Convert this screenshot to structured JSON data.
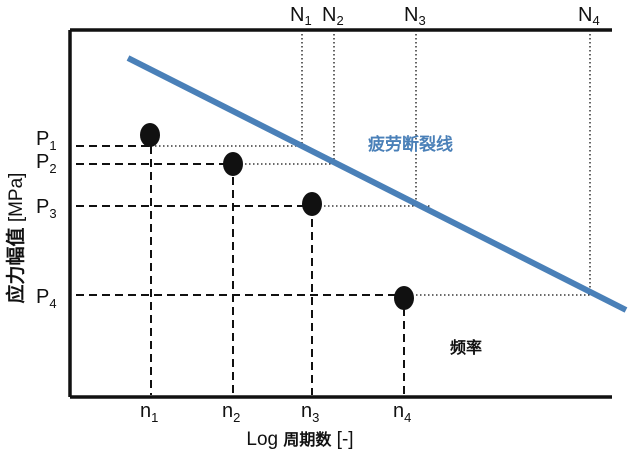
{
  "diagram": {
    "top_labels": [
      {
        "main": "N",
        "sub": "1"
      },
      {
        "main": "N",
        "sub": "2"
      },
      {
        "main": "N",
        "sub": "3"
      },
      {
        "main": "N",
        "sub": "4"
      }
    ],
    "left_labels": [
      {
        "main": "P",
        "sub": "1"
      },
      {
        "main": "P",
        "sub": "2"
      },
      {
        "main": "P",
        "sub": "3"
      },
      {
        "main": "P",
        "sub": "4"
      }
    ],
    "bottom_labels": [
      {
        "main": "n",
        "sub": "1"
      },
      {
        "main": "n",
        "sub": "2"
      },
      {
        "main": "n",
        "sub": "3"
      },
      {
        "main": "n",
        "sub": "4"
      }
    ],
    "y_axis_title": {
      "cjk": "应力幅值",
      "unit": " [MPa]"
    },
    "x_axis_title": {
      "prefix": "Log ",
      "cjk": "周期数",
      "unit": " [-]"
    },
    "curve_label": "疲劳断裂线",
    "region_label": "频率",
    "curve_color": "#4a80b8",
    "line_color": "#111111"
  }
}
